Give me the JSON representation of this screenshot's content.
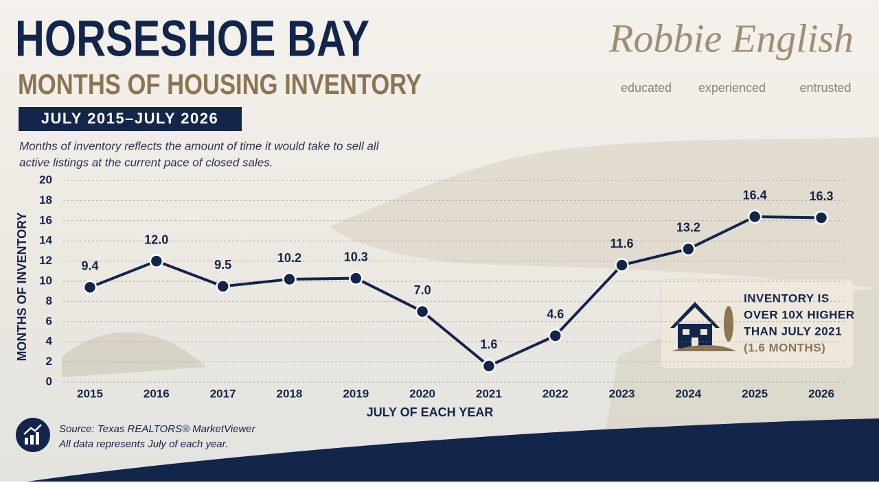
{
  "chart_data": {
    "type": "line",
    "title": "HORSESHOE BAY",
    "subtitle": "MONTHS OF HOUSING INVENTORY",
    "date_range": "JULY 2015–JULY 2026",
    "description": [
      "Months of inventory reflects the amount of time it would take to sell all",
      "active listings at the current pace of closed sales."
    ],
    "x_label": "JULY OF EACH YEAR",
    "y_label": "MONTHS OF INVENTORY",
    "categories": [
      "2015",
      "2016",
      "2017",
      "2018",
      "2019",
      "2020",
      "2021",
      "2022",
      "2023",
      "2024",
      "2025",
      "2026"
    ],
    "values": [
      9.4,
      12.0,
      9.5,
      10.2,
      10.3,
      7.0,
      1.6,
      4.6,
      11.6,
      13.2,
      16.4,
      16.3
    ],
    "value_labels": [
      "9.4",
      "12.0",
      "9.5",
      "10.2",
      "10.3",
      "7.0",
      "1.6",
      "4.6",
      "11.6",
      "13.2",
      "16.4",
      "16.3"
    ],
    "color": "#13254a",
    "ylim": [
      0,
      20
    ],
    "yticks": [
      0,
      2,
      4,
      6,
      8,
      10,
      12,
      14,
      16,
      18,
      20
    ],
    "grid": true,
    "callout": [
      "INVENTORY IS",
      "OVER 10X HIGHER",
      "THAN JULY 2021",
      "(1.6 MONTHS)"
    ],
    "source": [
      "Source: Texas REALTORS® MarketViewer",
      "All data represents July of each year."
    ]
  },
  "brand": {
    "name": "Robbie English",
    "taglines": [
      "educated",
      "experienced",
      "entrusted"
    ]
  }
}
